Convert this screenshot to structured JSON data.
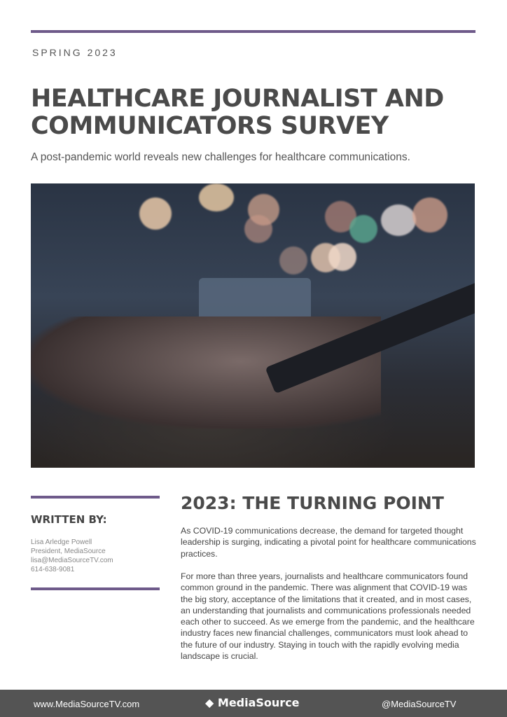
{
  "season": "SPRING 2023",
  "title": "HEALTHCARE JOURNALIST AND COMMUNICATORS SURVEY",
  "subtitle": "A post-pandemic world reveals new challenges for healthcare communications.",
  "accent_color": "#6e5a8a",
  "written_by": {
    "heading": "WRITTEN BY:",
    "lines": [
      "Lisa Arledge Powell",
      "President, MediaSource",
      "lisa@MediaSourceTV.com",
      "614-638-9081"
    ]
  },
  "section": {
    "heading": "2023: THE TURNING POINT",
    "paragraphs": [
      "As COVID-19 communications decrease, the demand for targeted thought leadership is surging, indicating a pivotal point for healthcare communications practices.",
      "For more than three years, journalists and healthcare communicators found common ground in the pandemic. There was alignment that COVID-19 was the big story, acceptance of the limitations that it created, and in most cases, an understanding that journalists and communications professionals needed each other to succeed. As we emerge from the pandemic, and the healthcare industry faces new financial challenges, communicators must look ahead to the future of our industry. Staying in touch with the rapidly evolving media landscape is crucial."
    ]
  },
  "footer": {
    "website": "www.MediaSourceTV.com",
    "logo": "MediaSource",
    "handle": "@MediaSourceTV"
  }
}
